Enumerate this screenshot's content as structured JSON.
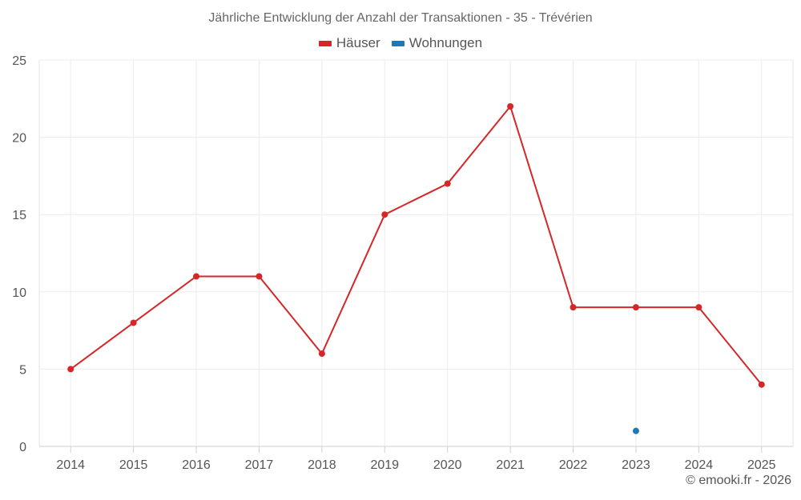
{
  "chart_data": {
    "type": "line",
    "title": "Jährliche Entwicklung der Anzahl der Transaktionen - 35 - Trévérien",
    "categories": [
      "2014",
      "2015",
      "2016",
      "2017",
      "2018",
      "2019",
      "2020",
      "2021",
      "2022",
      "2023",
      "2024",
      "2025"
    ],
    "series": [
      {
        "name": "Häuser",
        "color": "#d62728",
        "values": [
          5,
          8,
          11,
          11,
          6,
          15,
          17,
          22,
          9,
          9,
          9,
          4
        ]
      },
      {
        "name": "Wohnungen",
        "color": "#1f77b4",
        "values": [
          null,
          null,
          null,
          null,
          null,
          null,
          null,
          null,
          null,
          1,
          null,
          null
        ]
      }
    ],
    "ylim": [
      0,
      25
    ],
    "yticks": [
      0,
      5,
      10,
      15,
      20,
      25
    ],
    "grid": true,
    "legend_position": "top-center",
    "xlabel": "",
    "ylabel": ""
  },
  "footer": {
    "copyright": "© emooki.fr - 2026"
  }
}
